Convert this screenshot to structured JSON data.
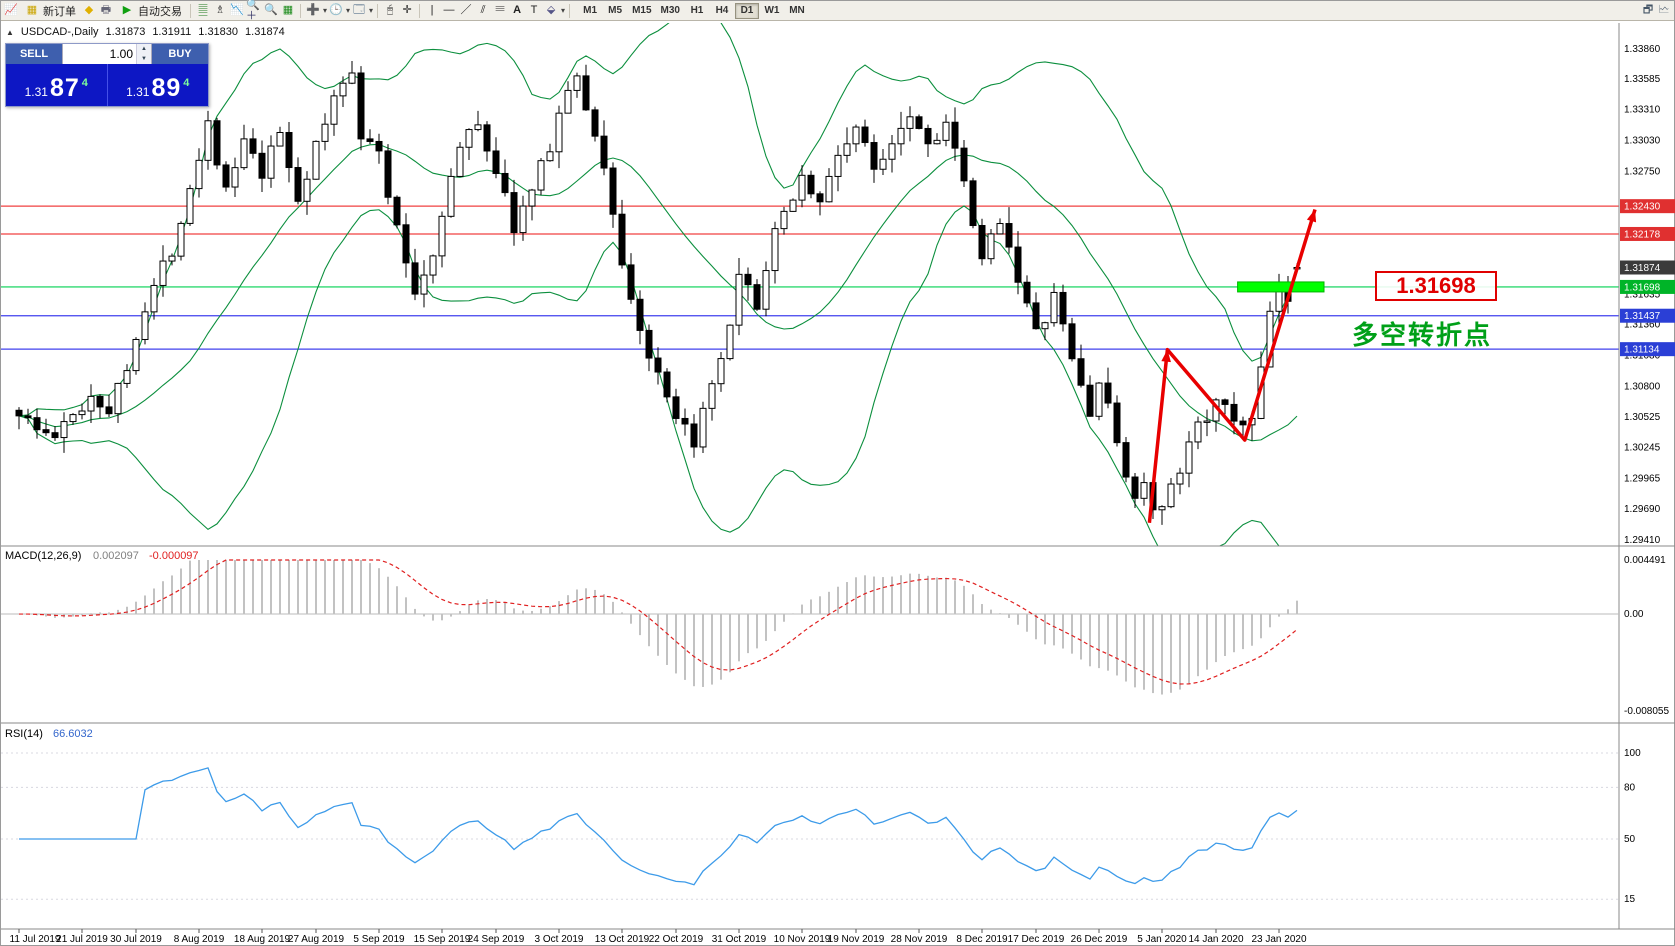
{
  "toolbar": {
    "new_order_label": "新订单",
    "autotrade_label": "自动交易",
    "timeframes": [
      "M1",
      "M5",
      "M15",
      "M30",
      "H1",
      "H4",
      "D1",
      "W1",
      "MN"
    ],
    "active_timeframe": "D1"
  },
  "chart_header": {
    "symbol": "USDCAD-,Daily",
    "open": "1.31873",
    "high": "1.31911",
    "low": "1.31830",
    "close": "1.31874"
  },
  "trade_panel": {
    "sell_label": "SELL",
    "buy_label": "BUY",
    "volume": "1.00",
    "sell_price_main": "1.31",
    "sell_price_big": "87",
    "sell_price_sup": "4",
    "buy_price_main": "1.31",
    "buy_price_big": "89",
    "buy_price_sup": "4"
  },
  "annotations": {
    "price_label": "1.31698",
    "turning_point": "多空转折点"
  },
  "chart_data": {
    "type": "candlestick",
    "symbol": "USDCAD",
    "timeframe": "Daily",
    "ohlc": {
      "open": 1.31873,
      "high": 1.31911,
      "low": 1.3183,
      "close": 1.31874
    },
    "price_axis": {
      "top": 1.3409,
      "bottom": 1.2935
    },
    "price_axis_ticks": [
      "1.33860",
      "1.33585",
      "1.33310",
      "1.33030",
      "1.32750",
      "1.31635",
      "1.31360",
      "1.31080",
      "1.30800",
      "1.30525",
      "1.30245",
      "1.29965",
      "1.29690",
      "1.29410"
    ],
    "price_badges": [
      {
        "text": "1.32430",
        "color": "#e03030"
      },
      {
        "text": "1.32178",
        "color": "#e03030"
      },
      {
        "text": "1.31874",
        "color": "#3b3b3b"
      },
      {
        "text": "1.31698",
        "color": "#00b428"
      },
      {
        "text": "1.31437",
        "color": "#2b3fd6"
      },
      {
        "text": "1.31134",
        "color": "#2b3fd6"
      }
    ],
    "levels": [
      {
        "price": 1.3243,
        "color": "#f04040"
      },
      {
        "price": 1.32178,
        "color": "#f04040"
      },
      {
        "price": 1.31698,
        "color": "#00d050"
      },
      {
        "price": 1.31437,
        "color": "#4040ee"
      },
      {
        "price": 1.31134,
        "color": "#4040ee"
      }
    ],
    "highlight_box": {
      "start_index": 135.4,
      "end_index": 145,
      "price": 1.31698,
      "fill": "#00ff00",
      "stroke": "#00b400",
      "half_height": 5
    },
    "trend_arrows": {
      "color": "#e80000",
      "points": [
        [
          125.6,
          1.2956
        ],
        [
          127.6,
          1.3113
        ],
        [
          136.2,
          1.3031
        ],
        [
          144.0,
          1.324
        ]
      ]
    },
    "anchors": [
      [
        0,
        1.3058
      ],
      [
        2,
        1.304
      ],
      [
        4,
        1.3034
      ],
      [
        6,
        1.3052
      ],
      [
        8,
        1.3072
      ],
      [
        10,
        1.306
      ],
      [
        12,
        1.3095
      ],
      [
        13,
        1.313
      ],
      [
        15,
        1.317
      ],
      [
        17,
        1.3205
      ],
      [
        20,
        1.329
      ],
      [
        21,
        1.332
      ],
      [
        23,
        1.3255
      ],
      [
        25,
        1.33
      ],
      [
        27,
        1.327
      ],
      [
        29,
        1.331
      ],
      [
        31,
        1.325
      ],
      [
        33,
        1.3295
      ],
      [
        35,
        1.334
      ],
      [
        37,
        1.337
      ],
      [
        38,
        1.331
      ],
      [
        40,
        1.329
      ],
      [
        42,
        1.322
      ],
      [
        44,
        1.3165
      ],
      [
        46,
        1.32
      ],
      [
        47,
        1.324
      ],
      [
        49,
        1.3295
      ],
      [
        51,
        1.332
      ],
      [
        53,
        1.3275
      ],
      [
        55,
        1.3225
      ],
      [
        57,
        1.3255
      ],
      [
        59,
        1.33
      ],
      [
        61,
        1.335
      ],
      [
        62,
        1.3355
      ],
      [
        64,
        1.331
      ],
      [
        66,
        1.324
      ],
      [
        67,
        1.319
      ],
      [
        69,
        1.313
      ],
      [
        71,
        1.3085
      ],
      [
        73,
        1.3045
      ],
      [
        75,
        1.3032
      ],
      [
        77,
        1.3075
      ],
      [
        79,
        1.313
      ],
      [
        80,
        1.3175
      ],
      [
        82,
        1.3155
      ],
      [
        84,
        1.3215
      ],
      [
        86,
        1.3255
      ],
      [
        87,
        1.327
      ],
      [
        89,
        1.3245
      ],
      [
        91,
        1.329
      ],
      [
        93,
        1.3315
      ],
      [
        95,
        1.3275
      ],
      [
        97,
        1.3305
      ],
      [
        99,
        1.333
      ],
      [
        101,
        1.33
      ],
      [
        103,
        1.332
      ],
      [
        105,
        1.326
      ],
      [
        107,
        1.319
      ],
      [
        109,
        1.3235
      ],
      [
        111,
        1.318
      ],
      [
        113,
        1.3125
      ],
      [
        115,
        1.316
      ],
      [
        117,
        1.3105
      ],
      [
        119,
        1.3055
      ],
      [
        120,
        1.3085
      ],
      [
        122,
        1.303
      ],
      [
        124,
        1.2975
      ],
      [
        125,
        1.2995
      ],
      [
        126,
        1.2962
      ],
      [
        127,
        1.2968
      ],
      [
        129,
        1.3
      ],
      [
        131,
        1.305
      ],
      [
        133,
        1.3062
      ],
      [
        135,
        1.305
      ],
      [
        137,
        1.3046
      ],
      [
        138,
        1.3095
      ],
      [
        139,
        1.314
      ],
      [
        140,
        1.3168
      ],
      [
        141,
        1.315
      ],
      [
        142,
        1.3185
      ]
    ],
    "candle_count": 143,
    "x_axis_labels": [
      {
        "label": "11 Jul 2019",
        "index": 0
      },
      {
        "label": "21 Jul 2019",
        "index": 7
      },
      {
        "label": "30 Jul 2019",
        "index": 13
      },
      {
        "label": "8 Aug 2019",
        "index": 20
      },
      {
        "label": "18 Aug 2019",
        "index": 27
      },
      {
        "label": "27 Aug 2019",
        "index": 33
      },
      {
        "label": "5 Sep 2019",
        "index": 40
      },
      {
        "label": "15 Sep 2019",
        "index": 47
      },
      {
        "label": "24 Sep 2019",
        "index": 53
      },
      {
        "label": "3 Oct 2019",
        "index": 60
      },
      {
        "label": "13 Oct 2019",
        "index": 67
      },
      {
        "label": "22 Oct 2019",
        "index": 73
      },
      {
        "label": "31 Oct 2019",
        "index": 80
      },
      {
        "label": "10 Nov 2019",
        "index": 87
      },
      {
        "label": "19 Nov 2019",
        "index": 93
      },
      {
        "label": "28 Nov 2019",
        "index": 100
      },
      {
        "label": "8 Dec 2019",
        "index": 107
      },
      {
        "label": "17 Dec 2019",
        "index": 113
      },
      {
        "label": "26 Dec 2019",
        "index": 120
      },
      {
        "label": "5 Jan 2020",
        "index": 127
      },
      {
        "label": "14 Jan 2020",
        "index": 133
      },
      {
        "label": "23 Jan 2020",
        "index": 140
      }
    ],
    "indicators": {
      "bollinger": {
        "period": 20,
        "deviation": 2,
        "color": "#0c8f3e"
      },
      "macd": {
        "label": "MACD(12,26,9)",
        "value": "0.002097",
        "signal_value": "-0.000097",
        "axis_max": "0.004491",
        "axis_zero": "0.00",
        "axis_min": "-0.008055",
        "hist_color": "#c2c2c2",
        "signal_color": "#e02020"
      },
      "rsi": {
        "label": "RSI(14)",
        "value": "66.6032",
        "axis_labels": [
          100,
          80,
          50,
          15
        ],
        "color": "#3d9be9"
      }
    }
  }
}
